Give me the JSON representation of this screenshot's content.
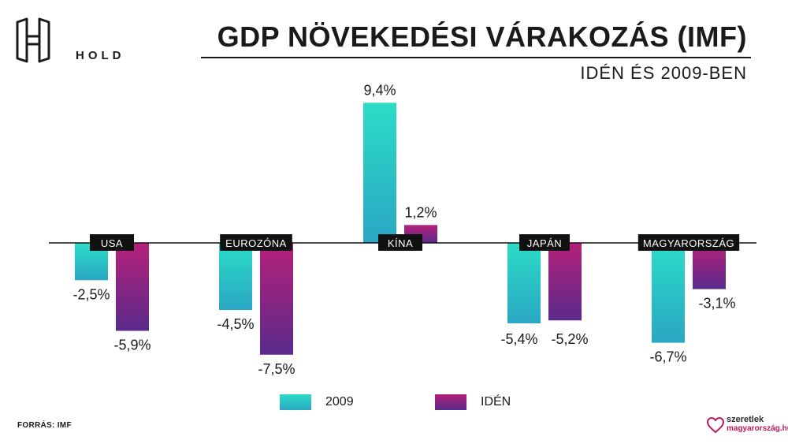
{
  "header": {
    "logo_text": "HOLD",
    "title": "GDP NÖVEKEDÉSI VÁRAKOZÁS (IMF)",
    "subtitle": "IDÉN ÉS 2009-BEN"
  },
  "chart_data": {
    "type": "bar",
    "title": "GDP NÖVEKEDÉSI VÁRAKOZÁS (IMF)",
    "subtitle": "IDÉN ÉS 2009-BEN",
    "categories": [
      "USA",
      "EUROZÓNA",
      "KÍNA",
      "JAPÁN",
      "MAGYARORSZÁG"
    ],
    "series": [
      {
        "name": "2009",
        "values": [
          -2.5,
          -4.5,
          9.4,
          -5.4,
          -6.7
        ],
        "labels": [
          "-2,5%",
          "-4,5%",
          "9,4%",
          "-5,4%",
          "-6,7%"
        ],
        "color_top": "#2bdcc6",
        "color_bottom": "#2aa7c4"
      },
      {
        "name": "IDÉN",
        "values": [
          -5.9,
          -7.5,
          1.2,
          -5.2,
          -3.1
        ],
        "labels": [
          "-5,9%",
          "-7,5%",
          "1,2%",
          "-5,2%",
          "-3,1%"
        ],
        "color_top": "#b5217a",
        "color_bottom": "#5a2a8a"
      }
    ],
    "ylim": [
      -8.5,
      10
    ],
    "xlabel": "",
    "ylabel": "",
    "legend_position": "bottom",
    "grid": false
  },
  "footer": {
    "source": "FORRÁS: IMF",
    "brand_line1": "szeretlek",
    "brand_line2": "magyarország.hu"
  },
  "colors": {
    "category_label_bg": "#111111",
    "category_label_text": "#ffffff",
    "axis": "#111111"
  }
}
